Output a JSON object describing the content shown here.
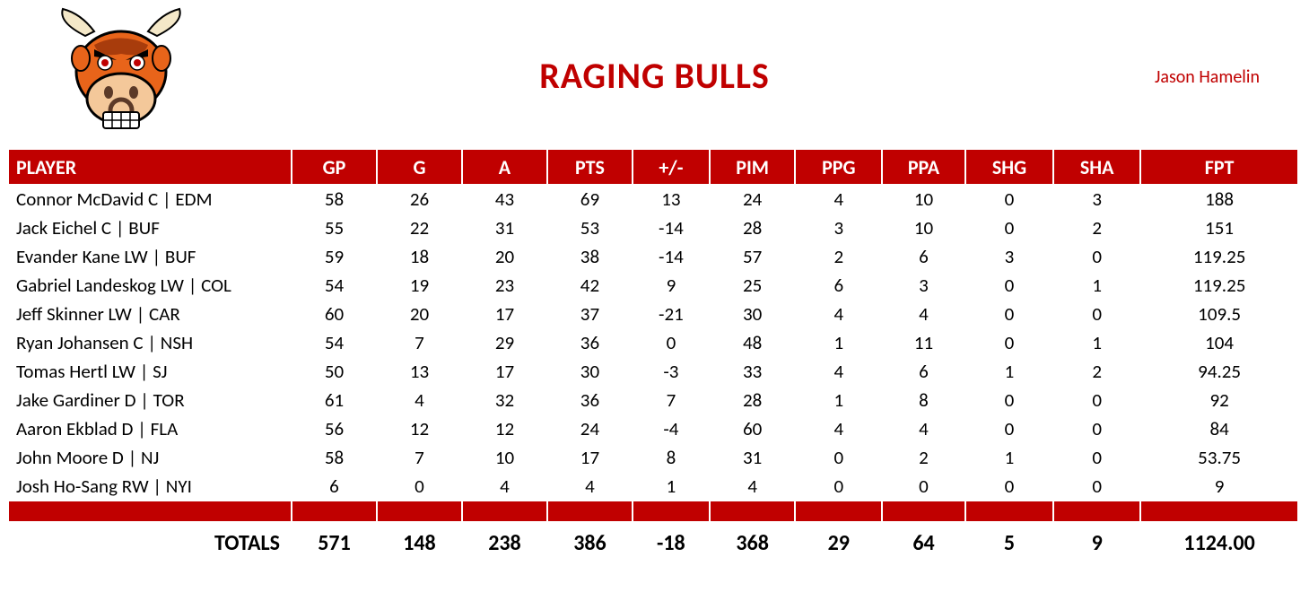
{
  "header": {
    "team_name": "RAGING BULLS",
    "owner": "Jason Hamelin",
    "title_color": "#c00000",
    "owner_color": "#c00000"
  },
  "table": {
    "header_bg": "#c00000",
    "header_fg": "#ffffff",
    "columns": [
      "PLAYER",
      "GP",
      "G",
      "A",
      "PTS",
      "+/-",
      "PIM",
      "PPG",
      "PPA",
      "SHG",
      "SHA",
      "FPT"
    ],
    "rows": [
      {
        "player": "Connor McDavid C | EDM",
        "gp": "58",
        "g": "26",
        "a": "43",
        "pts": "69",
        "pm": "13",
        "pim": "24",
        "ppg": "4",
        "ppa": "10",
        "shg": "0",
        "sha": "3",
        "fpt": "188"
      },
      {
        "player": "Jack Eichel C | BUF",
        "gp": "55",
        "g": "22",
        "a": "31",
        "pts": "53",
        "pm": "-14",
        "pim": "28",
        "ppg": "3",
        "ppa": "10",
        "shg": "0",
        "sha": "2",
        "fpt": "151"
      },
      {
        "player": "Evander Kane LW | BUF",
        "gp": "59",
        "g": "18",
        "a": "20",
        "pts": "38",
        "pm": "-14",
        "pim": "57",
        "ppg": "2",
        "ppa": "6",
        "shg": "3",
        "sha": "0",
        "fpt": "119.25"
      },
      {
        "player": "Gabriel Landeskog LW | COL",
        "gp": "54",
        "g": "19",
        "a": "23",
        "pts": "42",
        "pm": "9",
        "pim": "25",
        "ppg": "6",
        "ppa": "3",
        "shg": "0",
        "sha": "1",
        "fpt": "119.25"
      },
      {
        "player": "Jeff Skinner LW | CAR",
        "gp": "60",
        "g": "20",
        "a": "17",
        "pts": "37",
        "pm": "-21",
        "pim": "30",
        "ppg": "4",
        "ppa": "4",
        "shg": "0",
        "sha": "0",
        "fpt": "109.5"
      },
      {
        "player": "Ryan Johansen C | NSH",
        "gp": "54",
        "g": "7",
        "a": "29",
        "pts": "36",
        "pm": "0",
        "pim": "48",
        "ppg": "1",
        "ppa": "11",
        "shg": "0",
        "sha": "1",
        "fpt": "104"
      },
      {
        "player": "Tomas Hertl LW | SJ",
        "gp": "50",
        "g": "13",
        "a": "17",
        "pts": "30",
        "pm": "-3",
        "pim": "33",
        "ppg": "4",
        "ppa": "6",
        "shg": "1",
        "sha": "2",
        "fpt": "94.25"
      },
      {
        "player": "Jake Gardiner D | TOR",
        "gp": "61",
        "g": "4",
        "a": "32",
        "pts": "36",
        "pm": "7",
        "pim": "28",
        "ppg": "1",
        "ppa": "8",
        "shg": "0",
        "sha": "0",
        "fpt": "92"
      },
      {
        "player": "Aaron Ekblad D | FLA",
        "gp": "56",
        "g": "12",
        "a": "12",
        "pts": "24",
        "pm": "-4",
        "pim": "60",
        "ppg": "4",
        "ppa": "4",
        "shg": "0",
        "sha": "0",
        "fpt": "84"
      },
      {
        "player": "John Moore D | NJ",
        "gp": "58",
        "g": "7",
        "a": "10",
        "pts": "17",
        "pm": "8",
        "pim": "31",
        "ppg": "0",
        "ppa": "2",
        "shg": "1",
        "sha": "0",
        "fpt": "53.75"
      },
      {
        "player": "Josh Ho-Sang RW | NYI",
        "gp": "6",
        "g": "0",
        "a": "4",
        "pts": "4",
        "pm": "1",
        "pim": "4",
        "ppg": "0",
        "ppa": "0",
        "shg": "0",
        "sha": "0",
        "fpt": "9"
      }
    ],
    "totals": {
      "label": "TOTALS",
      "gp": "571",
      "g": "148",
      "a": "238",
      "pts": "386",
      "pm": "-18",
      "pim": "368",
      "ppg": "29",
      "ppa": "64",
      "shg": "5",
      "sha": "9",
      "fpt": "1124.00"
    }
  },
  "logo": {
    "body_color": "#e8641a",
    "body_dark": "#a83c0c",
    "horn_color": "#f4e8c8",
    "eye_color": "#c00000",
    "nose_color": "#5c3a28",
    "teeth_color": "#ffffff"
  }
}
